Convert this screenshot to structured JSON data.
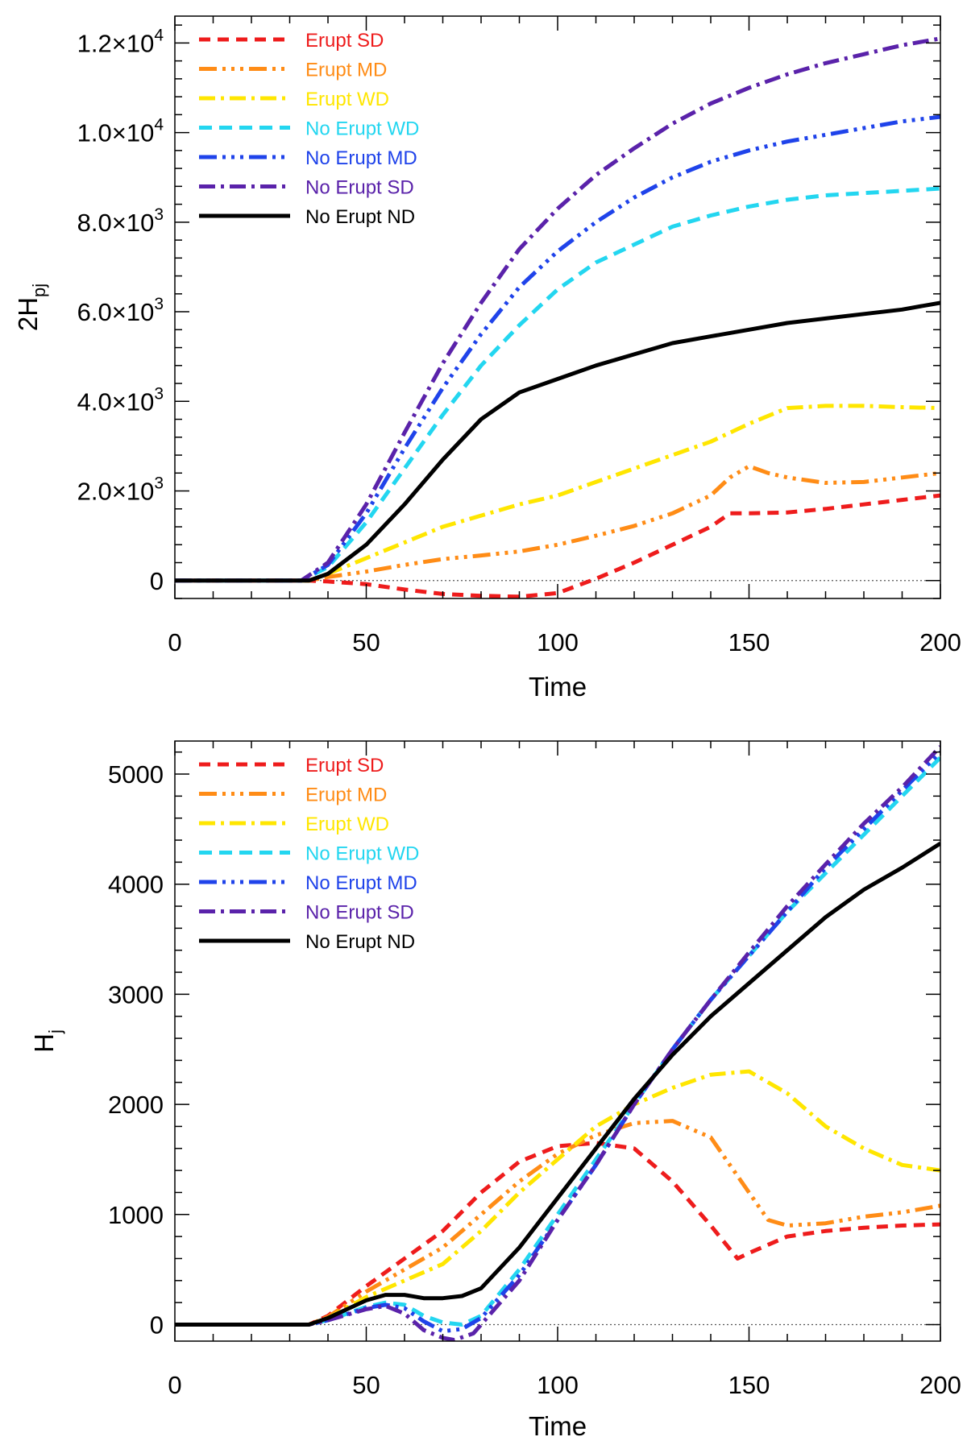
{
  "chart_data": [
    {
      "type": "line",
      "id": "top",
      "xlabel": "Time",
      "ylabel": "2H",
      "ylabel_sub": "pj",
      "xlim": [
        0,
        200
      ],
      "ylim": [
        -400,
        12600
      ],
      "xticks": [
        0,
        50,
        100,
        150,
        200
      ],
      "xtick_labels": [
        "0",
        "50",
        "100",
        "150",
        "200"
      ],
      "yticks": [
        {
          "value": 0,
          "mant": "0",
          "exp": ""
        },
        {
          "value": 2000,
          "mant": "2.0×10",
          "exp": "3"
        },
        {
          "value": 4000,
          "mant": "4.0×10",
          "exp": "3"
        },
        {
          "value": 6000,
          "mant": "6.0×10",
          "exp": "3"
        },
        {
          "value": 8000,
          "mant": "8.0×10",
          "exp": "3"
        },
        {
          "value": 10000,
          "mant": "1.0×10",
          "exp": "4"
        },
        {
          "value": 12000,
          "mant": "1.2×10",
          "exp": "4"
        }
      ],
      "zero_line": true,
      "legend_position": "top-left",
      "series": [
        {
          "name": "Erupt SD",
          "color": "#ee1c1c",
          "dash": "14,9",
          "width": 5,
          "x": [
            0,
            35,
            40,
            50,
            60,
            70,
            80,
            90,
            100,
            110,
            120,
            130,
            140,
            145,
            150,
            160,
            170,
            180,
            190,
            200
          ],
          "y": [
            0,
            0,
            -20,
            -80,
            -200,
            -300,
            -340,
            -360,
            -280,
            40,
            400,
            800,
            1200,
            1500,
            1500,
            1520,
            1600,
            1700,
            1800,
            1900
          ]
        },
        {
          "name": "Erupt MD",
          "color": "#ff8c16",
          "dash": "22,7,4,7,4,7,4,7",
          "width": 5,
          "x": [
            0,
            35,
            40,
            50,
            60,
            70,
            80,
            90,
            100,
            110,
            120,
            130,
            140,
            145,
            150,
            155,
            160,
            170,
            180,
            190,
            200
          ],
          "y": [
            0,
            0,
            80,
            200,
            350,
            480,
            560,
            650,
            800,
            1000,
            1220,
            1500,
            1900,
            2300,
            2550,
            2400,
            2300,
            2180,
            2200,
            2300,
            2400
          ]
        },
        {
          "name": "Erupt WD",
          "color": "#ffe600",
          "dash": "20,7,4,7",
          "width": 5,
          "x": [
            0,
            35,
            40,
            50,
            60,
            70,
            80,
            90,
            100,
            110,
            120,
            130,
            140,
            150,
            160,
            170,
            180,
            190,
            200
          ],
          "y": [
            0,
            0,
            150,
            500,
            850,
            1200,
            1450,
            1700,
            1900,
            2200,
            2500,
            2800,
            3100,
            3500,
            3850,
            3900,
            3900,
            3870,
            3850
          ]
        },
        {
          "name": "No Erupt WD",
          "color": "#23d6f0",
          "dash": "16,9",
          "width": 5,
          "x": [
            0,
            33,
            40,
            50,
            60,
            70,
            80,
            90,
            100,
            110,
            120,
            130,
            140,
            150,
            160,
            170,
            180,
            190,
            200
          ],
          "y": [
            0,
            0,
            300,
            1300,
            2500,
            3700,
            4800,
            5700,
            6500,
            7100,
            7500,
            7900,
            8150,
            8350,
            8500,
            8600,
            8650,
            8700,
            8750
          ]
        },
        {
          "name": "No Erupt MD",
          "color": "#1f43ea",
          "dash": "22,7,4,7,4,7,4,7",
          "width": 5,
          "x": [
            0,
            33,
            40,
            50,
            60,
            70,
            80,
            90,
            100,
            110,
            120,
            130,
            140,
            150,
            160,
            170,
            180,
            190,
            200
          ],
          "y": [
            0,
            0,
            350,
            1500,
            2950,
            4300,
            5500,
            6550,
            7350,
            8000,
            8550,
            9000,
            9350,
            9600,
            9800,
            9950,
            10100,
            10250,
            10350
          ]
        },
        {
          "name": "No Erupt SD",
          "color": "#5a22aa",
          "dash": "20,7,4,7",
          "width": 5,
          "x": [
            0,
            33,
            40,
            50,
            60,
            70,
            80,
            90,
            100,
            110,
            120,
            130,
            140,
            150,
            160,
            170,
            180,
            190,
            200
          ],
          "y": [
            0,
            0,
            400,
            1700,
            3300,
            4850,
            6200,
            7400,
            8300,
            9050,
            9650,
            10200,
            10650,
            11000,
            11300,
            11550,
            11750,
            11950,
            12100
          ]
        },
        {
          "name": "No Erupt ND",
          "color": "#000000",
          "dash": "",
          "width": 5,
          "x": [
            0,
            35,
            40,
            50,
            60,
            70,
            80,
            90,
            100,
            110,
            120,
            130,
            140,
            150,
            160,
            170,
            180,
            190,
            200
          ],
          "y": [
            0,
            0,
            150,
            800,
            1700,
            2700,
            3600,
            4200,
            4500,
            4800,
            5050,
            5300,
            5450,
            5600,
            5750,
            5850,
            5950,
            6050,
            6200
          ]
        }
      ]
    },
    {
      "type": "line",
      "id": "bottom",
      "xlabel": "Time",
      "ylabel": "H",
      "ylabel_sub": "j",
      "xlim": [
        0,
        200
      ],
      "ylim": [
        -150,
        5300
      ],
      "xticks": [
        0,
        50,
        100,
        150,
        200
      ],
      "xtick_labels": [
        "0",
        "50",
        "100",
        "150",
        "200"
      ],
      "yticks": [
        {
          "value": 0,
          "mant": "0",
          "exp": ""
        },
        {
          "value": 1000,
          "mant": "1000",
          "exp": ""
        },
        {
          "value": 2000,
          "mant": "2000",
          "exp": ""
        },
        {
          "value": 3000,
          "mant": "3000",
          "exp": ""
        },
        {
          "value": 4000,
          "mant": "4000",
          "exp": ""
        },
        {
          "value": 5000,
          "mant": "5000",
          "exp": ""
        }
      ],
      "zero_line": true,
      "legend_position": "top-left",
      "series": [
        {
          "name": "Erupt SD",
          "color": "#ee1c1c",
          "dash": "14,9",
          "width": 5,
          "x": [
            0,
            35,
            40,
            50,
            60,
            70,
            80,
            90,
            100,
            110,
            120,
            130,
            140,
            147,
            150,
            160,
            170,
            180,
            190,
            200
          ],
          "y": [
            0,
            0,
            80,
            350,
            600,
            850,
            1200,
            1480,
            1620,
            1650,
            1600,
            1300,
            900,
            600,
            650,
            800,
            850,
            880,
            900,
            910
          ]
        },
        {
          "name": "Erupt MD",
          "color": "#ff8c16",
          "dash": "22,7,4,7,4,7,4,7",
          "width": 5,
          "x": [
            0,
            35,
            40,
            50,
            60,
            70,
            80,
            90,
            100,
            110,
            120,
            130,
            140,
            150,
            155,
            160,
            170,
            180,
            190,
            200
          ],
          "y": [
            0,
            0,
            70,
            300,
            500,
            700,
            1000,
            1300,
            1550,
            1720,
            1830,
            1850,
            1700,
            1200,
            950,
            900,
            920,
            980,
            1020,
            1080
          ]
        },
        {
          "name": "Erupt WD",
          "color": "#ffe600",
          "dash": "20,7,4,7",
          "width": 5,
          "x": [
            0,
            35,
            40,
            50,
            60,
            70,
            80,
            90,
            100,
            110,
            120,
            130,
            140,
            150,
            160,
            170,
            180,
            190,
            200
          ],
          "y": [
            0,
            0,
            60,
            250,
            400,
            550,
            850,
            1200,
            1500,
            1800,
            2000,
            2150,
            2270,
            2300,
            2100,
            1800,
            1600,
            1450,
            1400
          ]
        },
        {
          "name": "No Erupt WD",
          "color": "#23d6f0",
          "dash": "16,9",
          "width": 5,
          "x": [
            0,
            35,
            40,
            50,
            55,
            60,
            65,
            70,
            75,
            80,
            90,
            100,
            110,
            120,
            130,
            140,
            150,
            160,
            170,
            180,
            190,
            200
          ],
          "y": [
            0,
            0,
            40,
            160,
            200,
            180,
            80,
            20,
            0,
            80,
            500,
            1000,
            1500,
            2000,
            2500,
            2950,
            3350,
            3750,
            4100,
            4450,
            4800,
            5150
          ]
        },
        {
          "name": "No Erupt MD",
          "color": "#1f43ea",
          "dash": "22,7,4,7,4,7,4,7",
          "width": 5,
          "x": [
            0,
            35,
            40,
            50,
            55,
            60,
            65,
            70,
            75,
            80,
            90,
            100,
            110,
            120,
            130,
            140,
            150,
            160,
            170,
            180,
            190,
            200
          ],
          "y": [
            0,
            0,
            40,
            150,
            180,
            150,
            30,
            -60,
            -40,
            60,
            450,
            950,
            1450,
            2000,
            2500,
            2950,
            3350,
            3750,
            4150,
            4500,
            4850,
            5200
          ]
        },
        {
          "name": "No Erupt SD",
          "color": "#5a22aa",
          "dash": "20,7,4,7",
          "width": 5,
          "x": [
            0,
            35,
            40,
            50,
            55,
            60,
            65,
            70,
            73,
            78,
            90,
            100,
            110,
            120,
            130,
            140,
            150,
            160,
            170,
            180,
            190,
            200
          ],
          "y": [
            0,
            0,
            40,
            140,
            170,
            100,
            -50,
            -120,
            -140,
            -80,
            400,
            950,
            1450,
            2000,
            2500,
            2950,
            3380,
            3800,
            4180,
            4550,
            4880,
            5250
          ]
        },
        {
          "name": "No Erupt ND",
          "color": "#000000",
          "dash": "",
          "width": 5,
          "x": [
            0,
            35,
            40,
            50,
            55,
            60,
            65,
            70,
            75,
            80,
            90,
            100,
            110,
            120,
            130,
            140,
            150,
            160,
            170,
            180,
            190,
            200
          ],
          "y": [
            0,
            0,
            60,
            220,
            270,
            270,
            240,
            240,
            260,
            330,
            700,
            1150,
            1600,
            2050,
            2450,
            2800,
            3100,
            3400,
            3700,
            3950,
            4150,
            4370
          ]
        }
      ]
    }
  ]
}
